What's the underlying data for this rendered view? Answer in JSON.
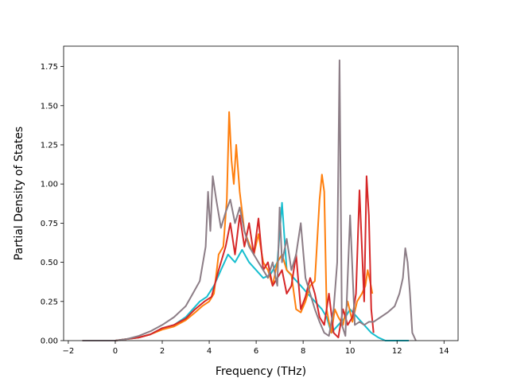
{
  "chart_data": {
    "type": "line",
    "title": "",
    "xlabel": "Frequency (THz)",
    "ylabel": "Partial Density of States",
    "xlim": [
      -2.2,
      14.6
    ],
    "ylim": [
      0,
      1.88
    ],
    "xticks": [
      -2,
      0,
      2,
      4,
      6,
      8,
      10,
      12,
      14
    ],
    "xtick_labels": [
      "−2",
      "0",
      "2",
      "4",
      "6",
      "8",
      "10",
      "12",
      "14"
    ],
    "yticks": [
      0,
      0.25,
      0.5,
      0.75,
      1.0,
      1.25,
      1.5,
      1.75
    ],
    "ytick_labels": [
      "0.00",
      "0.25",
      "0.50",
      "0.75",
      "1.00",
      "1.25",
      "1.50",
      "1.75"
    ],
    "grid": false,
    "legend": "none",
    "series": [
      {
        "color": "#17becf",
        "x": [
          -1.4,
          0,
          0.5,
          1,
          1.5,
          2,
          2.5,
          3,
          3.3,
          3.6,
          3.9,
          4.2,
          4.5,
          4.8,
          5.1,
          5.4,
          5.7,
          6,
          6.3,
          6.6,
          6.9,
          7.1,
          7.3,
          7.6,
          7.9,
          8.2,
          8.5,
          8.8,
          9.0,
          9.2,
          9.5,
          9.8,
          10.0,
          10.3,
          10.6,
          10.9,
          11.2,
          11.5,
          12,
          12.5
        ],
        "y": [
          0,
          0,
          0.01,
          0.02,
          0.04,
          0.08,
          0.1,
          0.15,
          0.2,
          0.25,
          0.28,
          0.35,
          0.45,
          0.55,
          0.5,
          0.58,
          0.5,
          0.45,
          0.4,
          0.42,
          0.5,
          0.88,
          0.45,
          0.4,
          0.35,
          0.3,
          0.25,
          0.2,
          0.15,
          0.05,
          0.1,
          0.15,
          0.2,
          0.15,
          0.1,
          0.05,
          0.02,
          0.0,
          0,
          0
        ]
      },
      {
        "color": "#ff7f0e",
        "x": [
          -1.4,
          0,
          0.5,
          1,
          1.5,
          2,
          2.5,
          3,
          3.4,
          3.7,
          4.0,
          4.2,
          4.4,
          4.6,
          4.75,
          4.85,
          4.95,
          5.05,
          5.15,
          5.3,
          5.5,
          5.7,
          5.9,
          6.1,
          6.3,
          6.5,
          6.7,
          6.9,
          7.1,
          7.3,
          7.5,
          7.7,
          7.9,
          8.1,
          8.3,
          8.5,
          8.7,
          8.8,
          8.9,
          9.0,
          9.1,
          9.2,
          9.35,
          9.5,
          9.7,
          9.9,
          10.1,
          10.3,
          10.5,
          10.65,
          10.75,
          10.85,
          10.95
        ],
        "y": [
          0,
          0,
          0.01,
          0.02,
          0.04,
          0.07,
          0.09,
          0.13,
          0.18,
          0.22,
          0.25,
          0.3,
          0.55,
          0.6,
          0.9,
          1.46,
          1.15,
          1.0,
          1.25,
          0.95,
          0.7,
          0.62,
          0.55,
          0.68,
          0.5,
          0.45,
          0.35,
          0.5,
          0.55,
          0.45,
          0.42,
          0.2,
          0.18,
          0.25,
          0.35,
          0.38,
          0.9,
          1.06,
          0.95,
          0.2,
          0.12,
          0.05,
          0.2,
          0.15,
          0.1,
          0.25,
          0.12,
          0.25,
          0.3,
          0.35,
          0.45,
          0.38,
          0.3
        ]
      },
      {
        "color": "#d62728",
        "x": [
          -1.4,
          0,
          0.5,
          1,
          1.5,
          2,
          2.5,
          3,
          3.4,
          3.8,
          4.1,
          4.4,
          4.7,
          4.9,
          5.1,
          5.3,
          5.5,
          5.7,
          5.9,
          6.1,
          6.3,
          6.5,
          6.7,
          6.9,
          7.1,
          7.3,
          7.5,
          7.7,
          7.9,
          8.1,
          8.3,
          8.5,
          8.7,
          8.9,
          9.1,
          9.3,
          9.5,
          9.7,
          9.9,
          10.1,
          10.25,
          10.4,
          10.5,
          10.6,
          10.7,
          10.8,
          10.9,
          11.0
        ],
        "y": [
          0,
          0,
          0.01,
          0.02,
          0.04,
          0.08,
          0.1,
          0.14,
          0.2,
          0.25,
          0.28,
          0.45,
          0.6,
          0.75,
          0.55,
          0.8,
          0.6,
          0.75,
          0.55,
          0.78,
          0.45,
          0.5,
          0.35,
          0.4,
          0.45,
          0.3,
          0.35,
          0.55,
          0.2,
          0.28,
          0.4,
          0.3,
          0.15,
          0.1,
          0.3,
          0.05,
          0.02,
          0.2,
          0.1,
          0.15,
          0.3,
          0.96,
          0.6,
          0.25,
          1.05,
          0.8,
          0.2,
          0.05
        ]
      },
      {
        "color": "#8c7d86",
        "x": [
          -1.4,
          0,
          0.5,
          1,
          1.5,
          2,
          2.5,
          3,
          3.3,
          3.6,
          3.85,
          3.95,
          4.05,
          4.15,
          4.3,
          4.5,
          4.7,
          4.9,
          5.1,
          5.3,
          5.5,
          5.7,
          5.9,
          6.1,
          6.3,
          6.5,
          6.7,
          6.9,
          7.0,
          7.1,
          7.3,
          7.5,
          7.7,
          7.9,
          8.1,
          8.3,
          8.5,
          8.7,
          8.9,
          9.1,
          9.3,
          9.45,
          9.55,
          9.65,
          9.8,
          10.0,
          10.2,
          10.4,
          10.6,
          10.8,
          11.0,
          11.3,
          11.6,
          11.9,
          12.1,
          12.25,
          12.35,
          12.45,
          12.55,
          12.65,
          12.8
        ],
        "y": [
          0,
          0,
          0.01,
          0.03,
          0.06,
          0.1,
          0.15,
          0.22,
          0.3,
          0.38,
          0.6,
          0.95,
          0.7,
          1.05,
          0.9,
          0.72,
          0.82,
          0.9,
          0.75,
          0.85,
          0.7,
          0.6,
          0.55,
          0.5,
          0.45,
          0.4,
          0.5,
          0.35,
          0.85,
          0.5,
          0.65,
          0.45,
          0.55,
          0.75,
          0.4,
          0.3,
          0.2,
          0.12,
          0.05,
          0.03,
          0.2,
          0.5,
          1.79,
          0.1,
          0.03,
          0.8,
          0.1,
          0.12,
          0.1,
          0.12,
          0.12,
          0.15,
          0.18,
          0.22,
          0.3,
          0.4,
          0.59,
          0.5,
          0.3,
          0.05,
          0.0
        ]
      }
    ]
  }
}
